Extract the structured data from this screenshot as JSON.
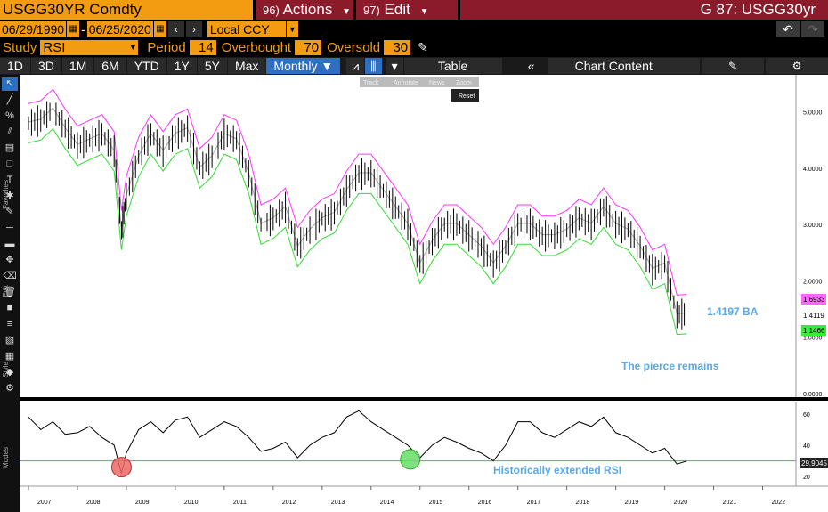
{
  "header": {
    "ticker": "USGG30YR Comdty",
    "actions": {
      "num": "96)",
      "label": "Actions"
    },
    "edit": {
      "num": "97)",
      "label": "Edit"
    },
    "title": "G 87: USGG30yr"
  },
  "range": {
    "start": "06/29/1990",
    "end": "06/25/2020",
    "currency": "Local CCY"
  },
  "study": {
    "label": "Study",
    "value": "RSI",
    "period_label": "Period",
    "period": "14",
    "overbought_label": "Overbought",
    "overbought": "70",
    "oversold_label": "Oversold",
    "oversold": "30"
  },
  "toolbar": {
    "timeframes": [
      "1D",
      "3D",
      "1M",
      "6M",
      "YTD",
      "1Y",
      "5Y",
      "Max"
    ],
    "interval": "Monthly",
    "table": "Table",
    "chart_content": "Chart Content"
  },
  "annotate_bar": {
    "items": [
      "Track",
      "Annotate",
      "News",
      "Zoom"
    ],
    "reset": "Reset"
  },
  "left_labels": {
    "favorites": "Favorites",
    "edit": "Edit",
    "style": "Style",
    "modes": "Modes"
  },
  "annotations": {
    "price": "1.4197 BA",
    "pierce": "The pierce remains",
    "rsi": "Historically extended RSI"
  },
  "price_axis": {
    "ticks": [
      "5.0000",
      "4.0000",
      "3.0000",
      "2.0000",
      "1.0000",
      "0.0000"
    ],
    "tags": [
      {
        "text": "1.6933",
        "color": "#ff66ff"
      },
      {
        "text": "1.4119",
        "color": "#000000"
      },
      {
        "text": "1.1466",
        "color": "#33ee33"
      }
    ]
  },
  "rsi_axis": {
    "ticks": [
      "60",
      "40",
      "20"
    ],
    "tag": "29.9045"
  },
  "x_axis": [
    "2007",
    "2008",
    "2009",
    "2010",
    "2011",
    "2012",
    "2013",
    "2014",
    "2015",
    "2016",
    "2017",
    "2018",
    "2019",
    "2020",
    "2021",
    "2022"
  ],
  "colors": {
    "accent": "#f39c12",
    "red": "#8b1a2b",
    "upper_band": "#ff33ff",
    "lower_band": "#33dd33",
    "annot": "#4a9ee0"
  },
  "chart_data": {
    "type": "line",
    "x": [
      2007.0,
      2007.25,
      2007.5,
      2007.75,
      2008.0,
      2008.25,
      2008.5,
      2008.75,
      2008.9,
      2009.0,
      2009.25,
      2009.5,
      2009.75,
      2010.0,
      2010.25,
      2010.5,
      2010.75,
      2011.0,
      2011.25,
      2011.5,
      2011.75,
      2012.0,
      2012.25,
      2012.5,
      2012.75,
      2013.0,
      2013.25,
      2013.5,
      2013.75,
      2014.0,
      2014.25,
      2014.5,
      2014.75,
      2015.0,
      2015.25,
      2015.5,
      2015.75,
      2016.0,
      2016.25,
      2016.5,
      2016.75,
      2017.0,
      2017.25,
      2017.5,
      2017.75,
      2018.0,
      2018.25,
      2018.5,
      2018.75,
      2019.0,
      2019.25,
      2019.5,
      2019.75,
      2020.0,
      2020.25,
      2020.45
    ],
    "series": [
      {
        "values": [
          4.8,
          4.85,
          5.05,
          4.7,
          4.4,
          4.5,
          4.6,
          4.3,
          2.9,
          3.5,
          4.2,
          4.6,
          4.3,
          4.6,
          4.7,
          4.0,
          4.2,
          4.6,
          4.5,
          3.9,
          3.0,
          3.1,
          3.3,
          2.6,
          2.9,
          3.1,
          3.2,
          3.6,
          3.9,
          3.9,
          3.6,
          3.3,
          3.0,
          2.3,
          2.7,
          3.0,
          3.0,
          2.8,
          2.6,
          2.3,
          2.6,
          3.0,
          3.0,
          2.8,
          2.8,
          2.9,
          3.1,
          3.0,
          3.3,
          3.0,
          2.9,
          2.6,
          2.2,
          2.3,
          1.4,
          1.41
        ]
      },
      {
        "values": [
          58,
          50,
          55,
          47,
          48,
          52,
          45,
          40,
          22,
          35,
          50,
          55,
          48,
          56,
          58,
          45,
          50,
          55,
          52,
          45,
          36,
          38,
          42,
          32,
          40,
          45,
          48,
          58,
          62,
          55,
          50,
          45,
          40,
          32,
          40,
          45,
          42,
          38,
          35,
          30,
          40,
          55,
          55,
          48,
          45,
          50,
          55,
          52,
          58,
          48,
          45,
          40,
          35,
          38,
          28,
          29.9
        ]
      }
    ],
    "ylim_price": [
      0,
      5.5
    ],
    "ylim_rsi": [
      15,
      65
    ],
    "xlim": [
      2007,
      2022.5
    ]
  }
}
